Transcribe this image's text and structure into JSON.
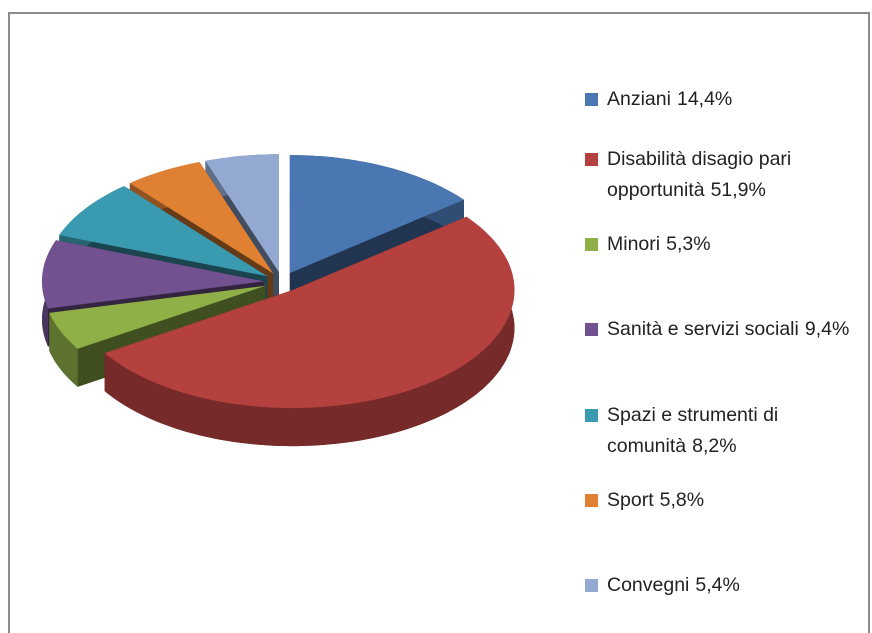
{
  "chart_data": {
    "type": "pie",
    "categories": [
      "Anziani",
      "Disabilità disagio pari opportunità",
      "Minori",
      "Sanità e servizi sociali",
      "Spazi e strumenti di comunità",
      "Sport",
      "Convegni"
    ],
    "values": [
      14.4,
      51.9,
      5.3,
      9.4,
      8.2,
      5.8,
      5.4
    ],
    "value_labels": [
      "14,4%",
      "51,9%",
      "5,3%",
      "9,4%",
      "8,2%",
      "5,8%",
      "5,4%"
    ],
    "colors": [
      "#4a76b2",
      "#b5413f",
      "#8fb047",
      "#71518f",
      "#3a9ab0",
      "#df8032",
      "#93a9d2"
    ]
  }
}
